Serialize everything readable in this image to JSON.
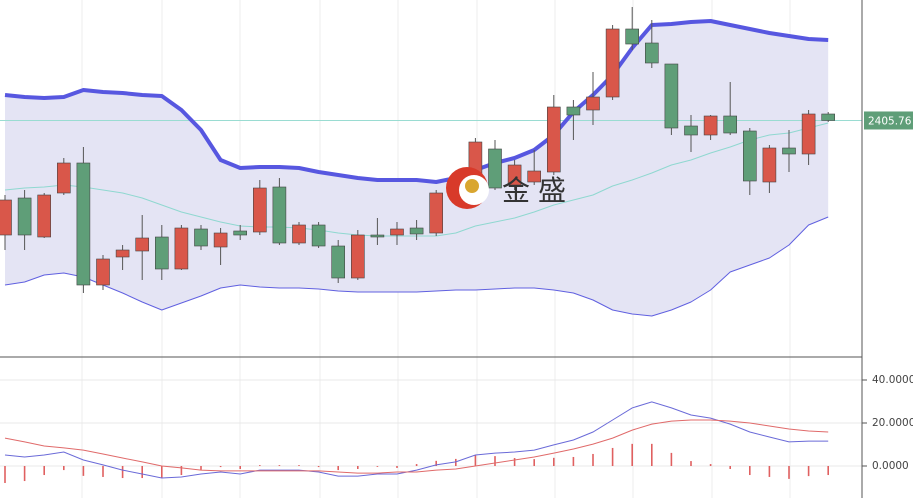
{
  "chart_data": [
    {
      "type": "candlestick",
      "ylim": [
        2287.5,
        2466
      ],
      "up_color": "#d9574a",
      "down_color": "#5f9e78",
      "wick_color": "#555555",
      "open": [
        2348.5,
        2367,
        2347.5,
        2369.5,
        2384.5,
        2323.5,
        2337.5,
        2340.5,
        2347.5,
        2331.5,
        2351.5,
        2342.5,
        2350.5,
        2350,
        2372.5,
        2344.5,
        2353.5,
        2343,
        2327,
        2348.5,
        2348.5,
        2352,
        2349.5,
        2368.5,
        2372,
        2391.5,
        2373.5,
        2375,
        2380,
        2412.5,
        2411,
        2417.5,
        2451.5,
        2444.5,
        2434,
        2403,
        2398.5,
        2408,
        2400.5,
        2375,
        2392,
        2389,
        2409
      ],
      "close": [
        2366,
        2348.5,
        2368.5,
        2384.5,
        2323.5,
        2336.5,
        2341,
        2347,
        2331.5,
        2352,
        2343,
        2349.5,
        2348.5,
        2372,
        2344.5,
        2353.5,
        2343,
        2327,
        2348.5,
        2347.5,
        2351.5,
        2349,
        2369.5,
        2376,
        2395,
        2372,
        2383.5,
        2380.5,
        2412.5,
        2408.5,
        2417.5,
        2451.5,
        2444,
        2434.5,
        2402,
        2398.5,
        2408,
        2399.5,
        2375.5,
        2392,
        2389,
        2409,
        2405.76
      ],
      "high": [
        2368.5,
        2371,
        2369.5,
        2387,
        2392.5,
        2338.5,
        2343.5,
        2358.5,
        2353.5,
        2353.5,
        2353.5,
        2352,
        2353.5,
        2376,
        2377,
        2355,
        2355,
        2346,
        2351,
        2357,
        2355,
        2356,
        2371,
        2378.5,
        2397,
        2396,
        2386,
        2391,
        2418.5,
        2416,
        2430,
        2453.5,
        2462.5,
        2456,
        2434,
        2408.5,
        2408.5,
        2425,
        2402,
        2393.5,
        2401,
        2411,
        2410
      ],
      "low": [
        2341,
        2341,
        2347,
        2368.5,
        2319.5,
        2321,
        2331,
        2326,
        2326,
        2331,
        2341,
        2333.5,
        2346,
        2348.5,
        2343.5,
        2343.5,
        2342,
        2324.5,
        2326,
        2343.5,
        2343.5,
        2346,
        2348,
        2366,
        2371,
        2371,
        2371,
        2373.5,
        2378.5,
        2396,
        2403.5,
        2416,
        2441,
        2432,
        2398.5,
        2390,
        2396,
        2398.5,
        2368.5,
        2369.5,
        2380,
        2383.5,
        2405
      ],
      "lines": [
        {
          "color": "#5757e0",
          "width": 4,
          "values": [
            2418.5,
            2417.5,
            2417,
            2417.5,
            2421,
            2420,
            2419.5,
            2418.5,
            2418,
            2411,
            2401,
            2386,
            2382,
            2382.5,
            2382.5,
            2382,
            2380,
            2378.5,
            2377,
            2376,
            2376,
            2376,
            2375,
            2377,
            2381,
            2384.5,
            2387,
            2391,
            2398.5,
            2410,
            2418.5,
            2428.5,
            2442,
            2453.5,
            2454,
            2455,
            2455.5,
            2453.5,
            2451.5,
            2449.5,
            2448,
            2446.5,
            2446
          ]
        },
        {
          "color": "#8fd8d0",
          "width": 1,
          "values": [
            2371,
            2372,
            2372.5,
            2373.5,
            2372.5,
            2371,
            2369.5,
            2367,
            2363.5,
            2360,
            2357.5,
            2355,
            2353,
            2352.5,
            2352.5,
            2352,
            2351,
            2349.5,
            2348.5,
            2348,
            2348,
            2348,
            2348,
            2349.5,
            2353,
            2355,
            2357,
            2360,
            2363.5,
            2366,
            2368.5,
            2373,
            2376,
            2379.5,
            2383.5,
            2386,
            2389.5,
            2392.5,
            2396,
            2398.5,
            2399.5,
            2402,
            2404.5
          ]
        },
        {
          "color": "#6060e0",
          "width": 1,
          "values": [
            2323.5,
            2325,
            2328.5,
            2329.5,
            2327.5,
            2323.5,
            2319.5,
            2315,
            2311,
            2314.5,
            2318,
            2322,
            2323.5,
            2322.5,
            2322,
            2322,
            2321.5,
            2320.5,
            2320,
            2320,
            2320,
            2320,
            2320.5,
            2321,
            2321,
            2321.5,
            2322,
            2322,
            2321,
            2319.5,
            2316,
            2311,
            2309,
            2308,
            2311,
            2315,
            2321,
            2330,
            2333.5,
            2337,
            2343.5,
            2353.5,
            2357.5
          ]
        }
      ],
      "band_fill": "#e4e4f4",
      "last_price": 2405.76,
      "last_price_color": "#5f9e78",
      "watermark": "金盛"
    },
    {
      "type": "macd",
      "ylim": [
        -15,
        50
      ],
      "yticks": [
        {
          "value": 40,
          "label": "40.0000"
        },
        {
          "value": 20,
          "label": "20.0000"
        },
        {
          "value": 0,
          "label": "0.0000"
        }
      ],
      "grid": true,
      "histogram": {
        "color": "#e06060",
        "values": [
          -7.9,
          -7.0,
          -4.2,
          -1.9,
          -4.6,
          -5.1,
          -5.6,
          -5.6,
          -5.6,
          -4.2,
          -1.8,
          -0.5,
          -1.4,
          0.4,
          0.4,
          0.4,
          -0.5,
          -1.9,
          -1.4,
          -0.4,
          -0.9,
          0.9,
          2.4,
          3.3,
          5.1,
          4.6,
          3.7,
          3.2,
          3.8,
          4.2,
          5.6,
          8.4,
          10.3,
          10.3,
          6.1,
          2.3,
          0.9,
          -1.4,
          -4.2,
          -5.1,
          -6.0,
          -4.7,
          -4.2
        ]
      },
      "lines": [
        {
          "color": "#6a6ad8",
          "width": 1,
          "values": [
            5.1,
            4.2,
            5.1,
            6.5,
            2.8,
            0.5,
            -1.9,
            -3.7,
            -5.6,
            -5.1,
            -3.7,
            -2.8,
            -3.7,
            -1.9,
            -1.9,
            -1.9,
            -2.8,
            -4.7,
            -4.7,
            -3.7,
            -3.7,
            -1.9,
            0.5,
            1.9,
            5.1,
            6.0,
            6.5,
            7.4,
            9.8,
            12.1,
            15.8,
            21.4,
            27.0,
            29.8,
            27.0,
            23.7,
            22.3,
            19.5,
            15.8,
            13.5,
            11.2,
            11.6,
            11.6
          ]
        },
        {
          "color": "#e06a6a",
          "width": 1,
          "values": [
            13.0,
            11.2,
            9.3,
            8.4,
            7.4,
            5.6,
            3.7,
            1.9,
            0,
            -0.9,
            -1.9,
            -2.3,
            -2.3,
            -2.3,
            -2.3,
            -2.3,
            -2.3,
            -2.8,
            -3.3,
            -3.3,
            -2.8,
            -2.8,
            -1.9,
            -1.4,
            0,
            1.4,
            2.8,
            4.2,
            6.0,
            7.9,
            10.2,
            13.0,
            16.7,
            19.5,
            20.9,
            21.4,
            21.4,
            20.9,
            20.0,
            18.6,
            17.2,
            16.3,
            15.8
          ]
        }
      ]
    }
  ]
}
